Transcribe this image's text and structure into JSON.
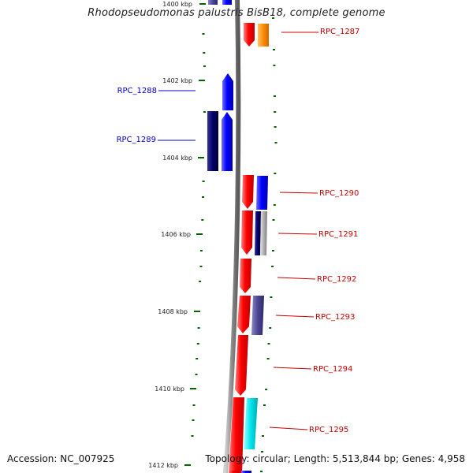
{
  "title": "Rhodopseudomonas palustris BisB18, complete genome",
  "footer": {
    "accession": "Accession: NC_007925",
    "summary": "Topology: circular; Length: 5,513,844 bp; Genes: 4,958"
  },
  "kbp_marks": [
    "1400 kbp",
    "1402 kbp",
    "1404 kbp",
    "1406 kbp",
    "1408 kbp",
    "1410 kbp",
    "1412 kbp"
  ],
  "genes": {
    "left": [
      "RPC_1288",
      "RPC_1289"
    ],
    "right": [
      "RPC_1287",
      "RPC_1290",
      "RPC_1291",
      "RPC_1292",
      "RPC_1293",
      "RPC_1294",
      "RPC_1295"
    ]
  },
  "colors": {
    "backbone": "#8c8c8c",
    "forward_gene": "#ff0000",
    "reverse_gene": "#0000ff",
    "dark_blue": "#000066",
    "slate": "#4b4594",
    "orange": "#ff8c00",
    "cyan": "#00e5ee",
    "grey": "#b0b0b0",
    "tick": "#006400",
    "left_label": "#0000cc",
    "right_label": "#cc0000"
  }
}
